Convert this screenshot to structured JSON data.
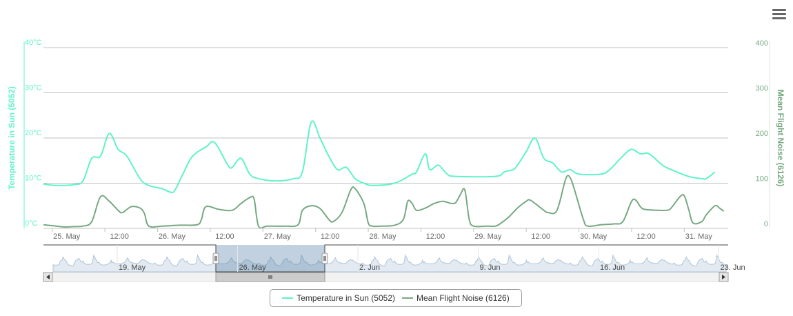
{
  "colors": {
    "temperature": "#5FF3C8",
    "noise": "#76A981",
    "grid": "#C0C0C0",
    "navigator_fill": "#AFC3D6",
    "navigator_selected": "#4E7AA3"
  },
  "menu": {
    "icon": "hamburger-menu-icon"
  },
  "chart_data": {
    "type": "line",
    "title": "",
    "xlabel": "",
    "x_ticks": [
      "25. May",
      "12:00",
      "26. May",
      "12:00",
      "27. May",
      "12:00",
      "28. May",
      "12:00",
      "29. May",
      "12:00",
      "30. May",
      "12:00",
      "31. May"
    ],
    "x_range": [
      "2015-05-24T22:00",
      "2015-05-31T22:00"
    ],
    "grid": true,
    "legend_position": "bottom-center",
    "y_left": {
      "label": "Temperature in Sun (5052)",
      "ticks": [
        "0°C",
        "10°C",
        "20°C",
        "30°C",
        "40°C"
      ],
      "range": [
        0,
        40
      ]
    },
    "y_right": {
      "label": "Mean Flight Noise (6126)",
      "ticks": [
        "0",
        "100",
        "200",
        "300",
        "400"
      ],
      "range": [
        0,
        400
      ]
    },
    "series": [
      {
        "name": "Temperature in Sun (5052)",
        "axis": "left",
        "unit": "°C",
        "points": [
          [
            0,
            9.8
          ],
          [
            3,
            9.5
          ],
          [
            7,
            9.7
          ],
          [
            9,
            10.5
          ],
          [
            11,
            15.5
          ],
          [
            13,
            16
          ],
          [
            15,
            21
          ],
          [
            17,
            17.5
          ],
          [
            19,
            16
          ],
          [
            22,
            11
          ],
          [
            24,
            9.5
          ],
          [
            27,
            8.8
          ],
          [
            29,
            8
          ],
          [
            30,
            8.5
          ],
          [
            32,
            12.5
          ],
          [
            34,
            16
          ],
          [
            37,
            18
          ],
          [
            39,
            19
          ],
          [
            42,
            14
          ],
          [
            43,
            13.5
          ],
          [
            45,
            15.5
          ],
          [
            47,
            12
          ],
          [
            49,
            11
          ],
          [
            53,
            10.5
          ],
          [
            57,
            11
          ],
          [
            59,
            12.5
          ],
          [
            61,
            23.5
          ],
          [
            63,
            20
          ],
          [
            65,
            16
          ],
          [
            67,
            13
          ],
          [
            69,
            13.5
          ],
          [
            71,
            11
          ],
          [
            73,
            10
          ],
          [
            75,
            9.5
          ],
          [
            80,
            10
          ],
          [
            84,
            12
          ],
          [
            85,
            12.5
          ],
          [
            87,
            16.5
          ],
          [
            88,
            13
          ],
          [
            90,
            14
          ],
          [
            92,
            12
          ],
          [
            94,
            11.5
          ],
          [
            103,
            11.5
          ],
          [
            105,
            12.5
          ],
          [
            107,
            13
          ],
          [
            108,
            14
          ],
          [
            110,
            17
          ],
          [
            112,
            20
          ],
          [
            114,
            15.5
          ],
          [
            116,
            14.5
          ],
          [
            118,
            12.5
          ],
          [
            120,
            13
          ],
          [
            122,
            12
          ],
          [
            127,
            12
          ],
          [
            129,
            13
          ],
          [
            132,
            16
          ],
          [
            134,
            17.5
          ],
          [
            136,
            16.5
          ],
          [
            138,
            16.5
          ],
          [
            141,
            14
          ],
          [
            143,
            13
          ],
          [
            147,
            11.5
          ],
          [
            150,
            11
          ],
          [
            151,
            11
          ],
          [
            153,
            12.5
          ]
        ]
      },
      {
        "name": "Mean Flight Noise (6126)",
        "axis": "right",
        "unit": "",
        "points": [
          [
            0,
            8
          ],
          [
            3,
            5
          ],
          [
            5,
            3
          ],
          [
            7,
            4
          ],
          [
            9,
            5
          ],
          [
            11,
            15
          ],
          [
            13,
            70
          ],
          [
            15,
            60
          ],
          [
            17,
            40
          ],
          [
            18,
            35
          ],
          [
            20,
            48
          ],
          [
            22,
            45
          ],
          [
            23,
            33
          ],
          [
            24,
            5
          ],
          [
            27,
            5
          ],
          [
            31,
            7
          ],
          [
            35,
            8
          ],
          [
            36,
            20
          ],
          [
            37,
            48
          ],
          [
            40,
            42
          ],
          [
            43,
            40
          ],
          [
            45,
            55
          ],
          [
            47,
            68
          ],
          [
            48,
            65
          ],
          [
            49,
            5
          ],
          [
            51,
            5
          ],
          [
            55,
            5
          ],
          [
            58,
            8
          ],
          [
            59,
            40
          ],
          [
            61,
            50
          ],
          [
            63,
            44
          ],
          [
            65,
            20
          ],
          [
            66,
            15
          ],
          [
            68,
            35
          ],
          [
            70,
            85
          ],
          [
            71,
            88
          ],
          [
            73,
            55
          ],
          [
            74,
            12
          ],
          [
            75,
            5
          ],
          [
            77,
            5
          ],
          [
            80,
            7
          ],
          [
            82,
            20
          ],
          [
            83,
            60
          ],
          [
            84,
            55
          ],
          [
            85,
            40
          ],
          [
            87,
            45
          ],
          [
            89,
            55
          ],
          [
            91,
            60
          ],
          [
            93,
            55
          ],
          [
            94,
            58
          ],
          [
            95,
            75
          ],
          [
            96,
            85
          ],
          [
            97,
            20
          ],
          [
            98,
            5
          ],
          [
            101,
            5
          ],
          [
            103,
            5
          ],
          [
            104,
            10
          ],
          [
            106,
            25
          ],
          [
            108,
            45
          ],
          [
            110,
            60
          ],
          [
            111,
            62
          ],
          [
            114,
            40
          ],
          [
            115,
            35
          ],
          [
            117,
            40
          ],
          [
            119,
            110
          ],
          [
            120,
            112
          ],
          [
            121,
            85
          ],
          [
            123,
            20
          ],
          [
            124,
            5
          ],
          [
            127,
            8
          ],
          [
            130,
            10
          ],
          [
            132,
            15
          ],
          [
            134,
            60
          ],
          [
            135,
            62
          ],
          [
            136,
            48
          ],
          [
            137,
            42
          ],
          [
            140,
            40
          ],
          [
            142,
            40
          ],
          [
            143,
            45
          ],
          [
            145,
            70
          ],
          [
            146,
            72
          ],
          [
            147,
            42
          ],
          [
            148,
            12
          ],
          [
            150,
            15
          ],
          [
            151,
            30
          ],
          [
            153,
            50
          ],
          [
            154,
            45
          ],
          [
            155,
            38
          ]
        ]
      }
    ]
  },
  "navigator": {
    "ticks": [
      "19. May",
      "26. May",
      "2. Jun",
      "9. Jun",
      "16. Jun",
      "23. Jun"
    ],
    "scrollbar_handle_icon": "grip-lines-icon",
    "left_arrow_icon": "left-arrow-icon",
    "right_arrow_icon": "right-arrow-icon"
  }
}
